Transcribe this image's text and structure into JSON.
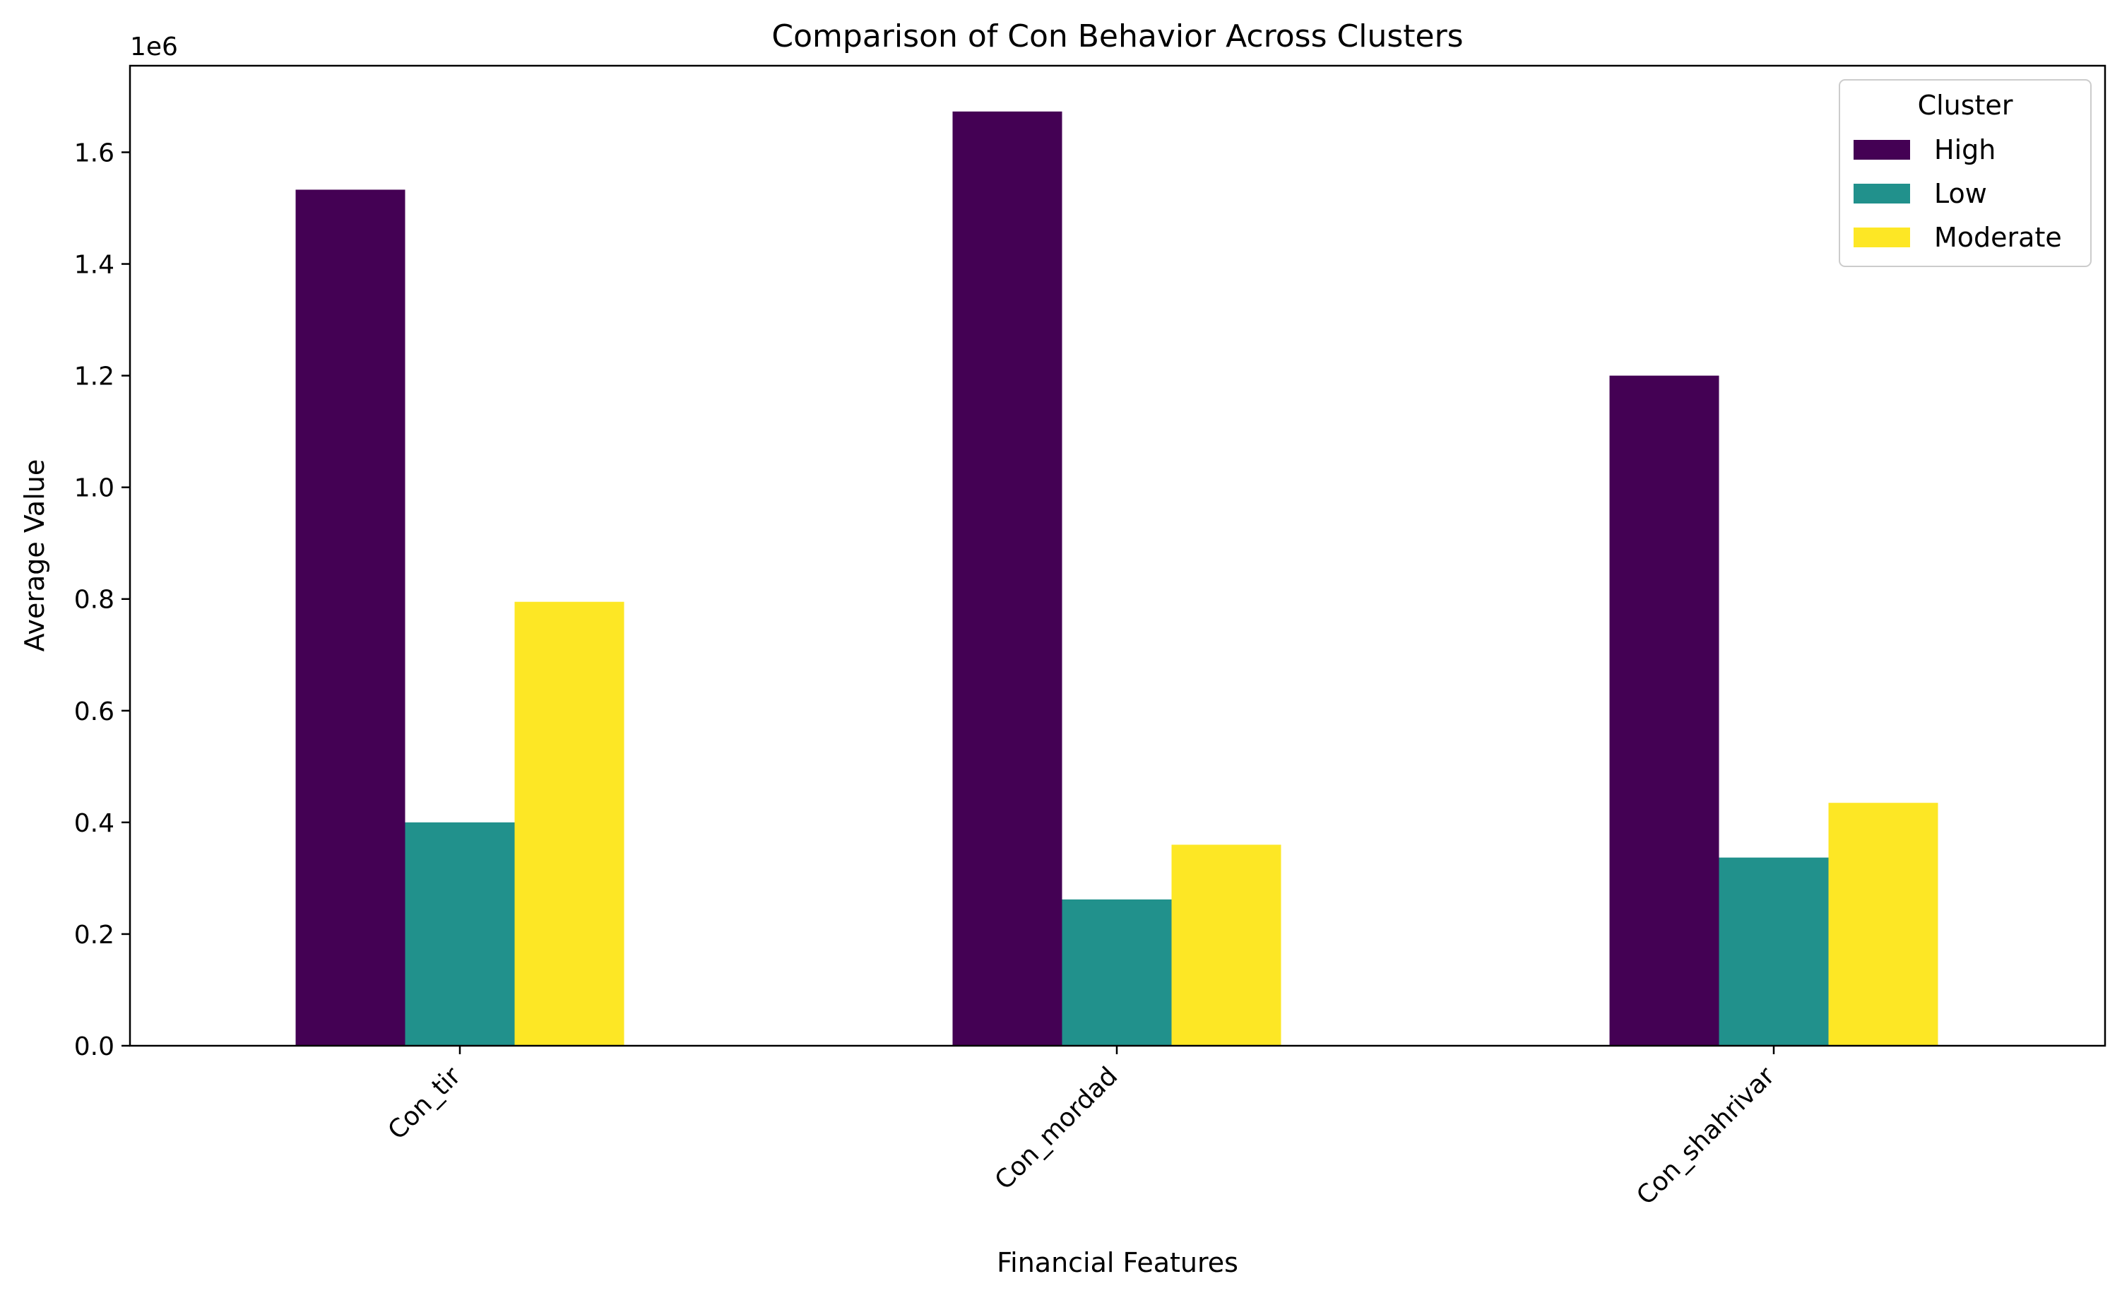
{
  "chart_data": {
    "type": "bar",
    "title": "Comparison of Con Behavior Across Clusters",
    "xlabel": "Financial Features",
    "ylabel": "Average Value",
    "y_offset_label": "1e6",
    "categories": [
      "Con_tir",
      "Con_mordad",
      "Con_shahrivar"
    ],
    "series": [
      {
        "name": "High",
        "color": "#440154",
        "values": [
          1533000,
          1673000,
          1200000
        ]
      },
      {
        "name": "Low",
        "color": "#21918c",
        "values": [
          400000,
          262000,
          337000
        ]
      },
      {
        "name": "Moderate",
        "color": "#fde725",
        "values": [
          795000,
          360000,
          435000
        ]
      }
    ],
    "ylim": [
      0,
      1755000
    ],
    "yticks": [
      0,
      200000,
      400000,
      600000,
      800000,
      1000000,
      1200000,
      1400000,
      1600000
    ],
    "ytick_labels": [
      "0.0",
      "0.2",
      "0.4",
      "0.6",
      "0.8",
      "1.0",
      "1.2",
      "1.4",
      "1.6"
    ],
    "legend": {
      "title": "Cluster",
      "position": "top-right"
    },
    "grid": false
  }
}
